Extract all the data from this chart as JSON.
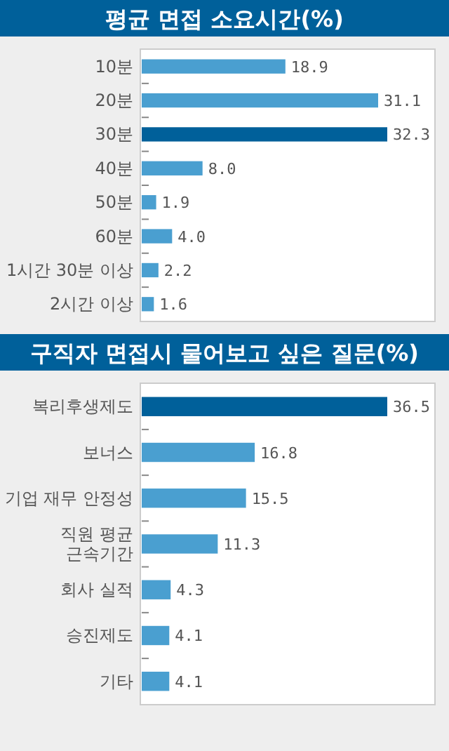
{
  "chart_data": [
    {
      "type": "bar",
      "orientation": "horizontal",
      "title": "평균 면접 소요시간(%)",
      "categories": [
        "10분",
        "20분",
        "30분",
        "40분",
        "50분",
        "60분",
        "1시간 30분 이상",
        "2시간 이상"
      ],
      "values": [
        18.9,
        31.1,
        32.3,
        8.0,
        1.9,
        4.0,
        2.2,
        1.6
      ],
      "value_labels": [
        "18.9",
        "31.1",
        "32.3",
        "8.0",
        "1.9",
        "4.0",
        "2.2",
        "1.6"
      ],
      "colors": [
        "#4a9fd0",
        "#4a9fd0",
        "#00609a",
        "#4a9fd0",
        "#4a9fd0",
        "#4a9fd0",
        "#4a9fd0",
        "#4a9fd0"
      ]
    },
    {
      "type": "bar",
      "orientation": "horizontal",
      "title": "구직자 면접시 물어보고 싶은 질문(%)",
      "categories": [
        "복리후생제도",
        "보너스",
        "기업 재무 안정성",
        "직원 평균\n근속기간",
        "회사 실적",
        "승진제도",
        "기타"
      ],
      "values": [
        36.5,
        16.8,
        15.5,
        11.3,
        4.3,
        4.1,
        4.1
      ],
      "value_labels": [
        "36.5",
        "16.8",
        "15.5",
        "11.3",
        "4.3",
        "4.1",
        "4.1"
      ],
      "colors": [
        "#00609a",
        "#4a9fd0",
        "#4a9fd0",
        "#4a9fd0",
        "#4a9fd0",
        "#4a9fd0",
        "#4a9fd0"
      ]
    }
  ]
}
